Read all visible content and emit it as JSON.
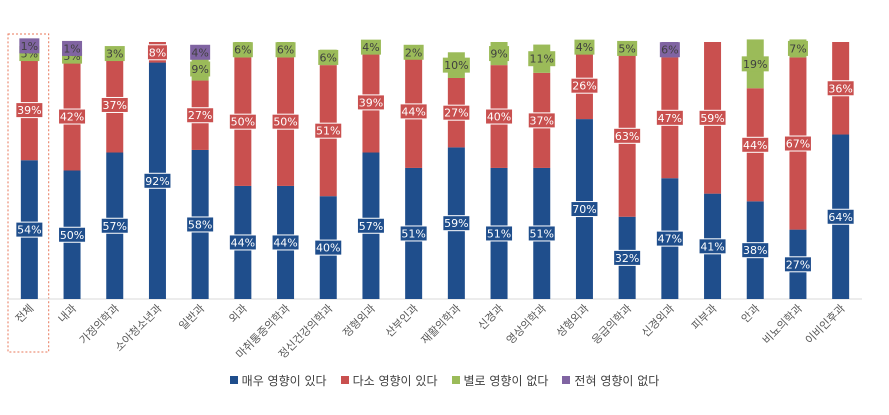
{
  "chart_data": {
    "type": "bar",
    "stacked": true,
    "orientation": "vertical",
    "percent": true,
    "ylim": [
      0,
      100
    ],
    "categories": [
      "전체",
      "내과",
      "가정의학과",
      "소아청소년과",
      "일반과",
      "외과",
      "마취통증의학과",
      "정신건강의학과",
      "정형외과",
      "산부인과",
      "재활의학과",
      "신경과",
      "영상의학과",
      "성형외과",
      "응급의학과",
      "신경외과",
      "피부과",
      "안과",
      "비뇨의학과",
      "이비인후과"
    ],
    "series": [
      {
        "name": "매우 영향이 있다",
        "color": "#1f4e8c",
        "values": [
          54,
          50,
          57,
          92,
          58,
          44,
          44,
          40,
          57,
          51,
          59,
          51,
          51,
          70,
          32,
          47,
          41,
          38,
          27,
          64
        ]
      },
      {
        "name": "다소 영향이 있다",
        "color": "#c9504f",
        "values": [
          39,
          42,
          37,
          8,
          27,
          50,
          50,
          51,
          39,
          44,
          27,
          40,
          37,
          26,
          63,
          47,
          59,
          44,
          67,
          36
        ]
      },
      {
        "name": "별로 영향이 없다",
        "color": "#9bbb59",
        "values": [
          5,
          5,
          3,
          0,
          9,
          6,
          6,
          6,
          4,
          2,
          10,
          9,
          11,
          4,
          5,
          0,
          0,
          19,
          7,
          0
        ]
      },
      {
        "name": "전혀 영향이 없다",
        "color": "#8064a2",
        "values": [
          1,
          1,
          0,
          0,
          4,
          0,
          0,
          0,
          0,
          0,
          0,
          0,
          0,
          0,
          0,
          6,
          0,
          0,
          0,
          0
        ]
      }
    ],
    "data_labels": true,
    "grid": false,
    "highlight_category": "전체",
    "highlight_color": "#e8775a",
    "legend_position": "bottom"
  }
}
